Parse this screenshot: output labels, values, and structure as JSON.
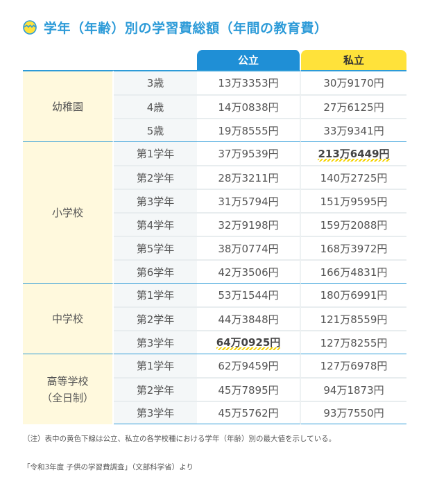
{
  "title": "学年（年齢）別の学習費総額（年間の教育費）",
  "header": {
    "public": "公立",
    "private": "私立"
  },
  "groups": [
    {
      "name": "幼稚園",
      "name2": "",
      "rows": [
        {
          "grade": "3歳",
          "public": "13万3353円",
          "private": "30万9170円"
        },
        {
          "grade": "4歳",
          "public": "14万0838円",
          "private": "27万6125円"
        },
        {
          "grade": "5歳",
          "public": "19万8555円",
          "private": "33万9341円"
        }
      ]
    },
    {
      "name": "小学校",
      "name2": "",
      "rows": [
        {
          "grade": "第1学年",
          "public": "37万9539円",
          "private": "213万6449円"
        },
        {
          "grade": "第2学年",
          "public": "28万3211円",
          "private": "140万2725円"
        },
        {
          "grade": "第3学年",
          "public": "31万5794円",
          "private": "151万9595円"
        },
        {
          "grade": "第4学年",
          "public": "32万9198円",
          "private": "159万2088円"
        },
        {
          "grade": "第5学年",
          "public": "38万0774円",
          "private": "168万3972円"
        },
        {
          "grade": "第6学年",
          "public": "42万3506円",
          "private": "166万4831円"
        }
      ]
    },
    {
      "name": "中学校",
      "name2": "",
      "rows": [
        {
          "grade": "第1学年",
          "public": "53万1544円",
          "private": "180万6991円"
        },
        {
          "grade": "第2学年",
          "public": "44万3848円",
          "private": "121万8559円"
        },
        {
          "grade": "第3学年",
          "public": "64万0925円",
          "private": "127万8255円"
        }
      ]
    },
    {
      "name": "高等学校",
      "name2": "（全日制）",
      "rows": [
        {
          "grade": "第1学年",
          "public": "62万9459円",
          "private": "127万6978円"
        },
        {
          "grade": "第2学年",
          "public": "45万7895円",
          "private": "94万1873円"
        },
        {
          "grade": "第3学年",
          "public": "45万5762円",
          "private": "93万7550円"
        }
      ]
    }
  ],
  "highlight_color": "#f5d200",
  "note": "（注）表中の黄色下線は公立、私立の各学校種における学年（年齢）別の最大値を示している。",
  "source": "「令和3年度 子供の学習費調査」（文部科学省）より"
}
